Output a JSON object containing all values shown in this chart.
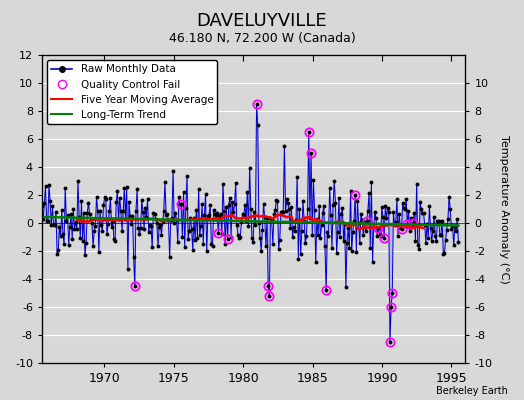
{
  "title": "DAVELUYVILLE",
  "subtitle": "46.180 N, 72.200 W (Canada)",
  "ylabel_right": "Temperature Anomaly (°C)",
  "credit": "Berkeley Earth",
  "ylim": [
    -10,
    12
  ],
  "xlim": [
    1965.5,
    1996.0
  ],
  "xticks": [
    1970,
    1975,
    1980,
    1985,
    1990,
    1995
  ],
  "yticks_left": [
    -10,
    -8,
    -6,
    -4,
    -2,
    0,
    2,
    4,
    6,
    8,
    10,
    12
  ],
  "yticks_right": [
    -10,
    -8,
    -6,
    -4,
    -2,
    0,
    2,
    4,
    6,
    8,
    10
  ],
  "background_color": "#d8d8d8",
  "plot_background": "#d8d8d8",
  "grid_color": "white",
  "raw_color": "#0000cc",
  "raw_fill_color": "#aaaaee",
  "qc_color": "#ff00ff",
  "moving_avg_color": "red",
  "trend_color": "green",
  "seed": 42,
  "start_year": 1965.5,
  "end_year": 1995.5,
  "n_months": 360
}
